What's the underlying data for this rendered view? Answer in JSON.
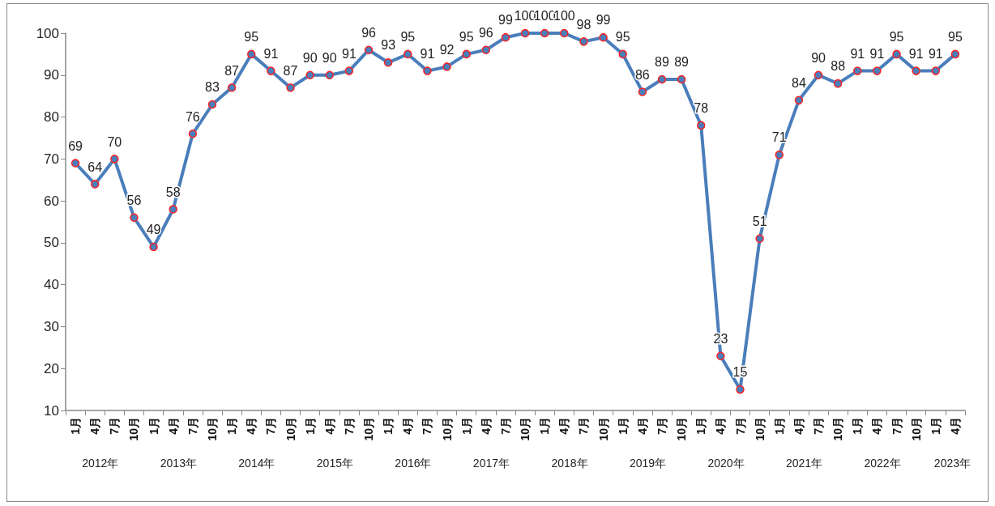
{
  "chart_data": {
    "type": "line",
    "categories": [
      "1月",
      "4月",
      "7月",
      "10月",
      "1月",
      "4月",
      "7月",
      "10月",
      "1月",
      "4月",
      "7月",
      "10月",
      "1月",
      "4月",
      "7月",
      "10月",
      "1月",
      "4月",
      "7月",
      "10月",
      "1月",
      "4月",
      "7月",
      "10月",
      "1月",
      "4月",
      "7月",
      "10月",
      "1月",
      "4月",
      "7月",
      "10月",
      "1月",
      "4月",
      "7月",
      "10月",
      "1月",
      "4月",
      "7月",
      "10月",
      "1月",
      "4月",
      "7月",
      "10月",
      "1月",
      "4月"
    ],
    "series": [
      {
        "color": "#4a7ebb",
        "values": [
          69,
          64,
          70,
          56,
          49,
          58,
          76,
          83,
          87,
          95,
          91,
          87,
          90,
          90,
          91,
          96,
          93,
          95,
          91,
          92,
          95,
          96,
          99,
          100,
          100,
          100,
          98,
          99,
          95,
          86,
          89,
          89,
          78,
          23,
          15,
          51,
          71,
          84,
          90,
          88,
          91,
          91,
          95,
          91,
          91,
          95
        ]
      }
    ],
    "ylim": [
      10,
      100
    ],
    "yticks": [
      10,
      20,
      30,
      40,
      50,
      60,
      70,
      80,
      90,
      100
    ],
    "grid": false,
    "marker": "circle",
    "line_style": "solid",
    "data_labels": true,
    "annotations": [
      "2012年",
      "2013年",
      "2014年",
      "2015年",
      "2016年",
      "2017年",
      "2018年",
      "2019年",
      "2020年",
      "2021年",
      "2022年",
      "2023年"
    ]
  }
}
